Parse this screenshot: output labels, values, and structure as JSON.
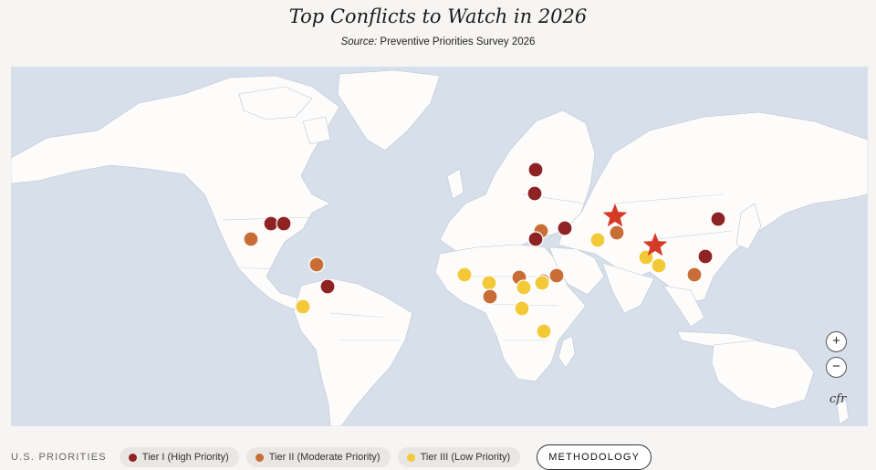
{
  "title": "Top Conflicts to Watch in 2026",
  "source_label": "Source:",
  "source_text": "Preventive Priorities Survey 2026",
  "colors": {
    "ocean": "#d6dfea",
    "land": "#fdfcfa",
    "tier1": "#8e2323",
    "tier2": "#c86d36",
    "tier3": "#f3c938",
    "star": "#d43a26"
  },
  "map": {
    "zoom_in": "+",
    "zoom_out": "−",
    "logo": "cfr",
    "markers": [
      {
        "tier": 1,
        "shape": "circle"
      },
      {
        "tier": 1,
        "shape": "circle"
      },
      {
        "tier": 2,
        "shape": "circle"
      },
      {
        "tier": 2,
        "shape": "circle"
      },
      {
        "tier": 1,
        "shape": "circle"
      },
      {
        "tier": 3,
        "shape": "circle"
      },
      {
        "tier": 1,
        "shape": "circle"
      },
      {
        "tier": 1,
        "shape": "circle"
      },
      {
        "tier": 2,
        "shape": "circle"
      },
      {
        "tier": 1,
        "shape": "circle"
      },
      {
        "tier": 1,
        "shape": "circle"
      },
      {
        "tier": 3,
        "shape": "circle"
      },
      {
        "tier": 3,
        "shape": "circle"
      },
      {
        "tier": 3,
        "shape": "circle"
      },
      {
        "tier": 2,
        "shape": "circle"
      },
      {
        "tier": 2,
        "shape": "circle"
      },
      {
        "tier": 3,
        "shape": "circle"
      },
      {
        "tier": 2,
        "shape": "circle"
      },
      {
        "tier": 2,
        "shape": "circle"
      },
      {
        "tier": 3,
        "shape": "circle"
      },
      {
        "tier": 3,
        "shape": "circle"
      },
      {
        "tier": 3,
        "shape": "circle"
      },
      {
        "tier": 2,
        "shape": "circle"
      },
      {
        "tier": 3,
        "shape": "circle"
      },
      {
        "tier": 3,
        "shape": "circle"
      },
      {
        "tier": 1,
        "shape": "circle"
      },
      {
        "tier": 1,
        "shape": "circle"
      },
      {
        "tier": 2,
        "shape": "circle"
      },
      {
        "tier": 0,
        "shape": "star"
      },
      {
        "tier": 0,
        "shape": "star"
      }
    ]
  },
  "legend": {
    "title": "U.S. PRIORITIES",
    "tier1": "Tier I (High Priority)",
    "tier2": "Tier II (Moderate Priority)",
    "tier3": "Tier III (Low Priority)",
    "methodology": "METHODOLOGY"
  }
}
